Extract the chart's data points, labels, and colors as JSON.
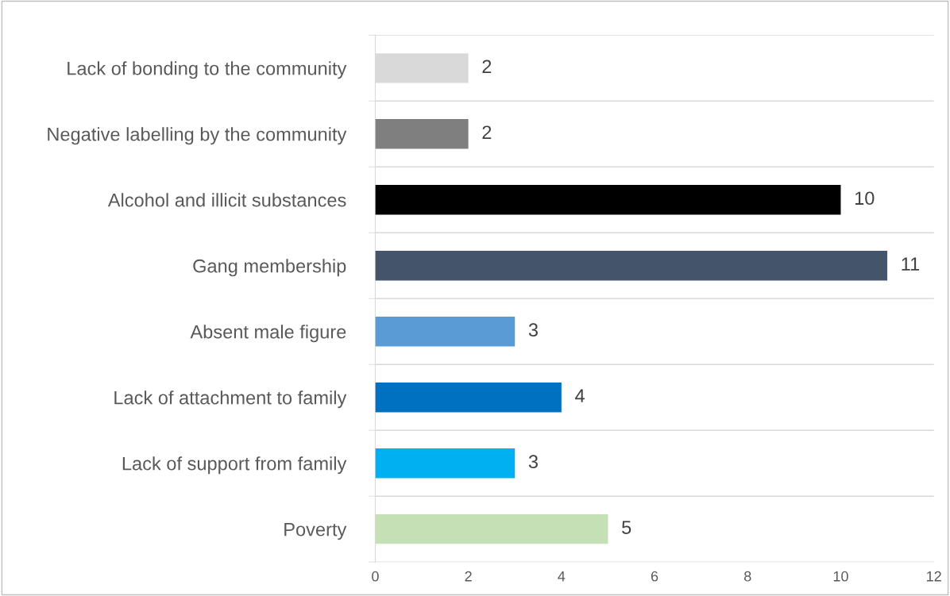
{
  "chart_data": {
    "type": "bar",
    "orientation": "horizontal",
    "categories": [
      "Lack of bonding to the community",
      "Negative labelling by the community",
      "Alcohol and illicit substances",
      "Gang membership",
      "Absent male figure",
      "Lack of attachment to family",
      "Lack of support from family",
      "Poverty"
    ],
    "values": [
      2,
      2,
      10,
      11,
      3,
      4,
      3,
      5
    ],
    "colors": [
      "#d9d9d9",
      "#7f7f7f",
      "#000000",
      "#44546a",
      "#5b9bd5",
      "#0070c0",
      "#00b0f0",
      "#c5e0b4"
    ],
    "xlim": [
      0,
      12
    ],
    "xticks": [
      0,
      2,
      4,
      6,
      8,
      10,
      12
    ],
    "grid": "y",
    "data_labels": true
  }
}
